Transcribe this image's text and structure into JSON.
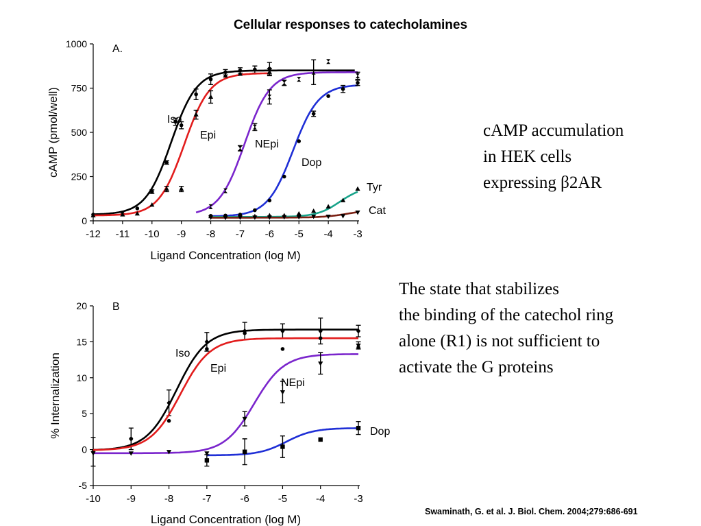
{
  "title": "Cellular responses to catecholamines",
  "note_a": [
    "cAMP accumulation",
    "in HEK cells",
    "expressing β2AR"
  ],
  "note_b": [
    "The state that stabilizes",
    "the binding of the catechol ring",
    "alone (R1) is not sufficient to",
    "activate the G proteins"
  ],
  "citation": "Swaminath, G. et al. J. Biol. Chem. 2004;279:686-691",
  "chart_data": [
    {
      "type": "line",
      "panel_label": "A.",
      "xlabel": "Ligand Concentration (log M)",
      "ylabel": "cAMP (pmol/well)",
      "xlim": [
        -12,
        -3
      ],
      "ylim": [
        0,
        1000
      ],
      "xticks": [
        -12,
        -11,
        -10,
        -9,
        -8,
        -7,
        -6,
        -5,
        -4,
        -3
      ],
      "yticks": [
        0,
        250,
        500,
        750,
        1000
      ],
      "series": [
        {
          "name": "Iso",
          "color": "#000000",
          "marker": "circle",
          "curve": {
            "bottom": 35,
            "top": 850,
            "logEC50": -9.35,
            "hill": 1.0,
            "xmin": -12,
            "xmax": -3.1
          },
          "x": [
            -12,
            -11,
            -10.5,
            -10,
            -9.5,
            -9.2,
            -9,
            -8.5,
            -8,
            -7.5,
            -7,
            -6.5,
            -6
          ],
          "y": [
            35,
            40,
            70,
            165,
            330,
            560,
            540,
            715,
            800,
            840,
            850,
            855,
            860
          ],
          "err": [
            0,
            0,
            0,
            10,
            10,
            20,
            20,
            30,
            30,
            15,
            15,
            20,
            35
          ]
        },
        {
          "name": "Epi",
          "color": "#e21c1c",
          "marker": "triangle-up",
          "curve": {
            "bottom": 30,
            "top": 835,
            "logEC50": -8.9,
            "hill": 1.0,
            "xmin": -12,
            "xmax": -6
          },
          "x": [
            -12,
            -11,
            -10.5,
            -10,
            -9.5,
            -9,
            -8.5,
            -8,
            -7.5,
            -7,
            -6
          ],
          "y": [
            30,
            35,
            40,
            90,
            180,
            180,
            600,
            700,
            820,
            830,
            840
          ],
          "err": [
            0,
            0,
            0,
            0,
            15,
            15,
            25,
            35,
            0,
            0,
            20
          ]
        },
        {
          "name": "NEpi",
          "color": "#7a25cc",
          "marker": "hourglass",
          "curve": {
            "bottom": 30,
            "top": 840,
            "logEC50": -6.85,
            "hill": 1.0,
            "xmin": -8.5,
            "xmax": -3
          },
          "x": [
            -8,
            -7.5,
            -7,
            -6.5,
            -6,
            -5.5,
            -5,
            -4.5,
            -4,
            -3
          ],
          "y": [
            80,
            170,
            410,
            530,
            700,
            780,
            800,
            840,
            900,
            820
          ],
          "err": [
            0,
            0,
            15,
            20,
            40,
            15,
            0,
            70,
            0,
            20
          ]
        },
        {
          "name": "Dop",
          "color": "#1f2fd6",
          "marker": "circle",
          "curve": {
            "bottom": 25,
            "top": 770,
            "logEC50": -5.2,
            "hill": 1.0,
            "xmin": -8,
            "xmax": -3
          },
          "x": [
            -8,
            -7.5,
            -7,
            -6.5,
            -6,
            -5.5,
            -5,
            -4.5,
            -4,
            -3.5,
            -3
          ],
          "y": [
            28,
            30,
            35,
            60,
            115,
            250,
            450,
            605,
            705,
            745,
            780
          ],
          "err": [
            0,
            0,
            0,
            0,
            0,
            0,
            0,
            15,
            0,
            20,
            15
          ]
        },
        {
          "name": "Tyr",
          "color": "#17a38a",
          "marker": "triangle-up",
          "curve": {
            "bottom": 22,
            "top": 195,
            "logEC50": -3.6,
            "hill": 1.1,
            "xmin": -8,
            "xmax": -3
          },
          "x": [
            -8,
            -7.5,
            -7,
            -6.5,
            -6,
            -5.5,
            -5,
            -4.5,
            -4,
            -3.5,
            -3
          ],
          "y": [
            25,
            25,
            25,
            25,
            30,
            30,
            40,
            55,
            80,
            115,
            180
          ],
          "err": [
            0,
            0,
            0,
            0,
            0,
            0,
            0,
            0,
            0,
            0,
            0
          ]
        },
        {
          "name": "Cat",
          "color": "#7a1f12",
          "marker": "triangle-down",
          "curve": {
            "bottom": 18,
            "top": 65,
            "logEC50": -3.3,
            "hill": 1.0,
            "xmin": -8,
            "xmax": -3
          },
          "x": [
            -8,
            -7.5,
            -7,
            -6.5,
            -6,
            -5.5,
            -5,
            -4.5,
            -4,
            -3.5,
            -3
          ],
          "y": [
            20,
            18,
            20,
            20,
            20,
            22,
            22,
            25,
            25,
            28,
            48
          ],
          "err": [
            0,
            0,
            0,
            0,
            0,
            0,
            0,
            0,
            0,
            0,
            0
          ]
        }
      ]
    },
    {
      "type": "line",
      "panel_label": "B",
      "xlabel": "Ligand Concentration (log M)",
      "ylabel": "% Internalization",
      "xlim": [
        -10,
        -3
      ],
      "ylim": [
        -5,
        20
      ],
      "xticks": [
        -10,
        -9,
        -8,
        -7,
        -6,
        -5,
        -4,
        -3
      ],
      "yticks": [
        -5,
        0,
        5,
        10,
        15,
        20
      ],
      "series": [
        {
          "name": "Iso",
          "color": "#000000",
          "marker": "diamond",
          "curve": {
            "bottom": -0.1,
            "top": 16.7,
            "logEC50": -7.8,
            "hill": 1.1,
            "xmin": -10,
            "xmax": -3
          },
          "x": [
            -10,
            -9,
            -8,
            -7,
            -6,
            -5,
            -4,
            -3
          ],
          "y": [
            -0.3,
            1.5,
            6.5,
            15.0,
            16.5,
            16.5,
            16.5,
            16.5
          ],
          "err": [
            2.0,
            1.5,
            1.8,
            1.3,
            1.2,
            1.0,
            1.8,
            0.8
          ]
        },
        {
          "name": "Epi",
          "color": "#e21c1c",
          "marker": "circle",
          "curve": {
            "bottom": -0.1,
            "top": 15.5,
            "logEC50": -7.7,
            "hill": 1.1,
            "xmin": -10,
            "xmax": -3
          },
          "x": [
            -9,
            -8,
            -7,
            -6,
            -5,
            -4,
            -3
          ],
          "y": [
            1.5,
            4.0,
            14.0,
            16.2,
            14.0,
            15.5,
            14.2
          ],
          "err": [
            0,
            0,
            0,
            0,
            0,
            0,
            0
          ]
        },
        {
          "name": "NEpi",
          "color": "#7a25cc",
          "marker": "triangle-down",
          "curve": {
            "bottom": -0.5,
            "top": 13.3,
            "logEC50": -5.75,
            "hill": 1.1,
            "xmin": -10,
            "xmax": -3
          },
          "x": [
            -10,
            -9,
            -8,
            -7,
            -6,
            -5,
            -4,
            -3
          ],
          "y": [
            -0.5,
            -0.5,
            -0.3,
            -0.5,
            4.3,
            8.0,
            12.0,
            14.5
          ],
          "err": [
            0,
            0,
            0,
            0,
            1.0,
            1.5,
            1.5,
            0.5
          ]
        },
        {
          "name": "Dop",
          "color": "#1f2fd6",
          "marker": "square",
          "curve": {
            "bottom": -0.8,
            "top": 3.0,
            "logEC50": -4.9,
            "hill": 1.2,
            "xmin": -7,
            "xmax": -3
          },
          "x": [
            -7,
            -6,
            -5,
            -4,
            -3
          ],
          "y": [
            -1.5,
            -0.3,
            0.4,
            1.4,
            3.0
          ],
          "err": [
            0.8,
            1.8,
            1.5,
            0,
            0.9
          ]
        }
      ]
    }
  ]
}
